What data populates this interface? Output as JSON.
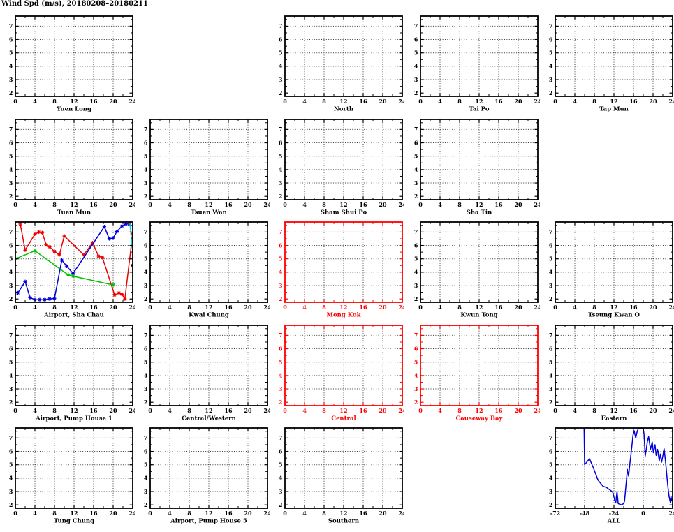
{
  "title": "Wind Spd (m/s), 20180208–20180211",
  "colors": {
    "axis_black": "#000000",
    "axis_red": "#ff0000",
    "grid": "#3c3c3c",
    "series_red": "#ee0000",
    "series_blue": "#0000dd",
    "series_green": "#00c000",
    "series_cyan": "#00dcdc",
    "series_gray": "#707070",
    "series_darkred": "#8b0000"
  },
  "chart_data": {
    "type": "line",
    "title": "Wind Spd (m/s), 20180208–20180211",
    "grid_layout": {
      "rows": 5,
      "cols": 5
    },
    "defaults": {
      "xlim": [
        0,
        24
      ],
      "xticks": [
        0,
        4,
        8,
        12,
        16,
        20,
        24
      ],
      "xminor": 2,
      "ylim": [
        1.75,
        7.75
      ],
      "yticks": [
        2,
        3,
        4,
        5,
        6,
        7
      ],
      "yminors": [
        2.5,
        3.5,
        4.5,
        5.5,
        6.5,
        7.5
      ],
      "grid_x": [
        4,
        8,
        12,
        16,
        20
      ],
      "grid_y": [
        3,
        4,
        5,
        6,
        7
      ],
      "grid_on": true,
      "legend": "none"
    },
    "panels": [
      {
        "title": "Yuen Long",
        "row": 1,
        "col": 1,
        "color": "black",
        "series": []
      },
      {
        "title": "North",
        "row": 1,
        "col": 3,
        "color": "black",
        "series": []
      },
      {
        "title": "Tai Po",
        "row": 1,
        "col": 4,
        "color": "black",
        "series": []
      },
      {
        "title": "Tap Mun",
        "row": 1,
        "col": 5,
        "color": "black",
        "series": []
      },
      {
        "title": "Tuen Mun",
        "row": 2,
        "col": 1,
        "color": "black",
        "series": []
      },
      {
        "title": "Tsuen Wan",
        "row": 2,
        "col": 2,
        "color": "black",
        "series": []
      },
      {
        "title": "Sham Shui Po",
        "row": 2,
        "col": 3,
        "color": "black",
        "series": []
      },
      {
        "title": "Sha Tin",
        "row": 2,
        "col": 4,
        "color": "black",
        "series": []
      },
      {
        "title": "Airport, Sha Chau",
        "row": 3,
        "col": 1,
        "color": "black",
        "series": [
          {
            "name": "red",
            "color": "#ee0000",
            "marker": true,
            "points": [
              [
                1,
                7.6
              ],
              [
                2,
                5.65
              ],
              [
                4,
                6.85
              ],
              [
                4.8,
                7.0
              ],
              [
                5.5,
                6.95
              ],
              [
                6.3,
                6.05
              ],
              [
                7,
                5.9
              ],
              [
                8,
                5.55
              ],
              [
                9,
                5.3
              ],
              [
                10,
                6.7
              ],
              [
                14,
                5.3
              ],
              [
                15.8,
                6.2
              ],
              [
                17,
                5.2
              ],
              [
                17.8,
                5.1
              ],
              [
                20.3,
                2.3
              ],
              [
                21.2,
                2.45
              ],
              [
                21.8,
                2.35
              ],
              [
                22.4,
                2.0
              ],
              [
                24,
                6.9
              ]
            ]
          },
          {
            "name": "blue",
            "color": "#0000dd",
            "marker": true,
            "points": [
              [
                0.5,
                2.45
              ],
              [
                2,
                3.3
              ],
              [
                3,
                2.1
              ],
              [
                4,
                1.95
              ],
              [
                5,
                1.95
              ],
              [
                6,
                1.95
              ],
              [
                7,
                2.0
              ],
              [
                8,
                2.05
              ],
              [
                9.5,
                4.9
              ],
              [
                10.5,
                4.45
              ],
              [
                11.8,
                3.9
              ],
              [
                18.2,
                7.4
              ],
              [
                19.2,
                6.5
              ],
              [
                20,
                6.55
              ],
              [
                20.8,
                7.05
              ],
              [
                21.8,
                7.45
              ],
              [
                22.6,
                7.6
              ],
              [
                23.3,
                7.6
              ]
            ]
          },
          {
            "name": "green",
            "color": "#00c000",
            "marker": true,
            "points": [
              [
                0,
                5.0
              ],
              [
                4,
                5.6
              ],
              [
                10.8,
                3.8
              ],
              [
                11.8,
                3.7
              ],
              [
                20,
                3.05
              ]
            ]
          },
          {
            "name": "cyan",
            "color": "#00dcdc",
            "marker": false,
            "points": [
              [
                23.4,
                7.7
              ],
              [
                24,
                5.5
              ]
            ]
          },
          {
            "name": "gray",
            "color": "#707070",
            "marker": true,
            "points": [
              [
                23.4,
                7.7
              ]
            ]
          },
          {
            "name": "darkred",
            "color": "#8b0000",
            "marker": true,
            "points": [
              [
                24,
                4.5
              ]
            ]
          }
        ]
      },
      {
        "title": "Kwai Chung",
        "row": 3,
        "col": 2,
        "color": "black",
        "series": []
      },
      {
        "title": "Mong Kok",
        "row": 3,
        "col": 3,
        "color": "red",
        "series": []
      },
      {
        "title": "Kwun Tong",
        "row": 3,
        "col": 4,
        "color": "black",
        "series": []
      },
      {
        "title": "Tseung Kwan O",
        "row": 3,
        "col": 5,
        "color": "black",
        "series": []
      },
      {
        "title": "Airport, Pump House 1",
        "row": 4,
        "col": 1,
        "color": "black",
        "series": []
      },
      {
        "title": "Central/Western",
        "row": 4,
        "col": 2,
        "color": "black",
        "series": []
      },
      {
        "title": "Central",
        "row": 4,
        "col": 3,
        "color": "red",
        "series": []
      },
      {
        "title": "Causeway Bay",
        "row": 4,
        "col": 4,
        "color": "red",
        "series": []
      },
      {
        "title": "Eastern",
        "row": 4,
        "col": 5,
        "color": "black",
        "series": []
      },
      {
        "title": "Tung Chung",
        "row": 5,
        "col": 1,
        "color": "black",
        "series": []
      },
      {
        "title": "Airport, Pump House 5",
        "row": 5,
        "col": 2,
        "color": "black",
        "series": []
      },
      {
        "title": "Southern",
        "row": 5,
        "col": 3,
        "color": "black",
        "series": []
      },
      {
        "title": "ALL",
        "row": 5,
        "col": 5,
        "color": "black",
        "xlim": [
          -72,
          24
        ],
        "xticks": [
          -72,
          -48,
          -24,
          0,
          24
        ],
        "xminor": 8,
        "grid_x": [
          -48,
          -24,
          0
        ],
        "series": [
          {
            "name": "blue",
            "color": "#0000dd",
            "marker": false,
            "points": [
              [
                -48.4,
                7.75
              ],
              [
                -48,
                5.0
              ],
              [
                -44,
                5.45
              ],
              [
                -41,
                4.8
              ],
              [
                -37,
                3.85
              ],
              [
                -33,
                3.4
              ],
              [
                -30,
                3.3
              ],
              [
                -27,
                3.1
              ],
              [
                -25,
                2.95
              ],
              [
                -23.5,
                2.4
              ],
              [
                -22.5,
                2.15
              ],
              [
                -21.5,
                3.0
              ],
              [
                -20.5,
                2.1
              ],
              [
                -18,
                2.0
              ],
              [
                -16,
                2.1
              ],
              [
                -15.3,
                2.3
              ],
              [
                -13,
                4.65
              ],
              [
                -12,
                4.15
              ],
              [
                -10.9,
                5.1
              ],
              [
                -9.4,
                6.35
              ],
              [
                -8.4,
                7.2
              ],
              [
                -7.5,
                7.55
              ],
              [
                -6.2,
                7.0
              ],
              [
                -5,
                7.5
              ],
              [
                -4,
                7.7
              ],
              [
                -2.5,
                7.7
              ],
              [
                -1.2,
                7.75
              ],
              [
                0,
                7.7
              ],
              [
                0.6,
                7.3
              ],
              [
                1.6,
                5.65
              ],
              [
                2.5,
                6.2
              ],
              [
                3.5,
                6.8
              ],
              [
                4.4,
                7.1
              ],
              [
                5.9,
                6.15
              ],
              [
                7.3,
                6.7
              ],
              [
                8.3,
                5.9
              ],
              [
                9.6,
                6.5
              ],
              [
                10.6,
                5.7
              ],
              [
                11.7,
                6.15
              ],
              [
                13.1,
                5.3
              ],
              [
                14,
                5.8
              ],
              [
                15,
                5.2
              ],
              [
                16,
                5.65
              ],
              [
                17,
                6.2
              ],
              [
                18.3,
                5.2
              ],
              [
                19.4,
                4.05
              ],
              [
                20.2,
                3.35
              ],
              [
                21.1,
                2.65
              ],
              [
                22.1,
                2.2
              ],
              [
                22.7,
                2.65
              ],
              [
                23.2,
                2.3
              ],
              [
                24,
                2.4
              ]
            ]
          }
        ]
      }
    ]
  }
}
